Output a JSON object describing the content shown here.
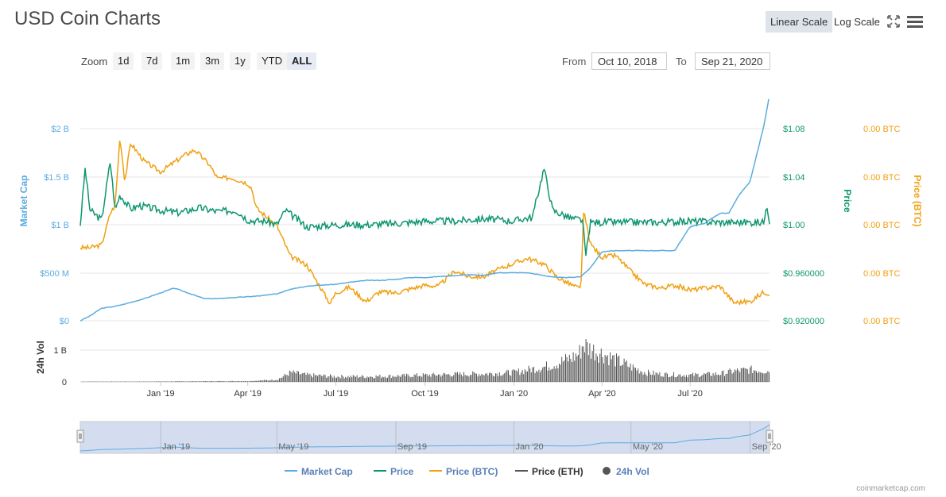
{
  "header": {
    "title": "USD Coin Charts",
    "linear_scale": "Linear Scale",
    "log_scale": "Log Scale",
    "fullscreen_icon": "fullscreen-icon",
    "menu_icon": "hamburger-menu-icon"
  },
  "zoom": {
    "label": "Zoom",
    "buttons": [
      "1d",
      "7d",
      "1m",
      "3m",
      "1y",
      "YTD",
      "ALL"
    ],
    "active": "ALL"
  },
  "range": {
    "from_label": "From",
    "from_value": "Oct 10, 2018",
    "to_label": "To",
    "to_value": "Sep 21, 2020"
  },
  "credit": "coinmarketcap.com",
  "colors": {
    "market_cap": "#5aace0",
    "price": "#0e9670",
    "price_btc": "#f0a010",
    "price_eth": "#555555",
    "volume": "#555555"
  },
  "chart_data": {
    "type": "line",
    "x_tick_labels": [
      "Jan '19",
      "Apr '19",
      "Jul '19",
      "Oct '19",
      "Jan '20",
      "Apr '20",
      "Jul '20"
    ],
    "navigator_tick_labels": [
      "Jan '19",
      "May '19",
      "Sep '19",
      "Jan '20",
      "May '20",
      "Sep '20"
    ],
    "axes": {
      "market_cap": {
        "title": "Market Cap",
        "ticks": [
          "$0",
          "$500 M",
          "$1 B",
          "$1.5 B",
          "$2 B"
        ],
        "ylim": [
          0,
          2000000000
        ]
      },
      "price": {
        "title": "Price",
        "ticks": [
          "$0.920000",
          "$0.960000",
          "$1.00",
          "$1.04",
          "$1.08"
        ],
        "ylim": [
          0.92,
          1.08
        ]
      },
      "price_btc": {
        "title": "Price (BTC)",
        "ticks": [
          "0.00 BTC",
          "0.00 BTC",
          "0.00 BTC",
          "0.00 BTC",
          "0.00 BTC"
        ]
      },
      "volume": {
        "title": "24h Vol",
        "ticks": [
          "0",
          "1 B"
        ],
        "ylim": [
          0,
          1000000000
        ]
      }
    },
    "series": [
      {
        "name": "Market Cap",
        "x": [
          "2018-10-10",
          "2018-10-20",
          "2018-11-01",
          "2018-11-15",
          "2018-12-01",
          "2018-12-15",
          "2019-01-01",
          "2019-01-15",
          "2019-02-01",
          "2019-02-15",
          "2019-03-01",
          "2019-03-15",
          "2019-04-01",
          "2019-04-15",
          "2019-05-01",
          "2019-05-15",
          "2019-06-01",
          "2019-06-15",
          "2019-07-01",
          "2019-07-15",
          "2019-08-01",
          "2019-08-15",
          "2019-09-01",
          "2019-09-15",
          "2019-10-01",
          "2019-10-15",
          "2019-11-01",
          "2019-11-15",
          "2019-12-01",
          "2019-12-15",
          "2020-01-01",
          "2020-01-15",
          "2020-02-01",
          "2020-02-15",
          "2020-03-01",
          "2020-03-10",
          "2020-03-20",
          "2020-04-01",
          "2020-04-15",
          "2020-05-01",
          "2020-05-15",
          "2020-06-01",
          "2020-06-15",
          "2020-07-01",
          "2020-07-15",
          "2020-08-01",
          "2020-08-10",
          "2020-08-20",
          "2020-09-01",
          "2020-09-10",
          "2020-09-15",
          "2020-09-21"
        ],
        "values": [
          0.0,
          0.05,
          0.13,
          0.15,
          0.19,
          0.23,
          0.29,
          0.34,
          0.28,
          0.23,
          0.23,
          0.24,
          0.25,
          0.26,
          0.28,
          0.33,
          0.36,
          0.37,
          0.38,
          0.4,
          0.42,
          0.42,
          0.43,
          0.45,
          0.45,
          0.46,
          0.47,
          0.48,
          0.47,
          0.5,
          0.5,
          0.5,
          0.47,
          0.45,
          0.45,
          0.46,
          0.55,
          0.72,
          0.73,
          0.73,
          0.73,
          0.73,
          0.73,
          0.98,
          1.01,
          1.12,
          1.12,
          1.3,
          1.45,
          1.82,
          2.02,
          2.35
        ],
        "unit": "B USD"
      },
      {
        "name": "Price",
        "x": [
          "2018-10-10",
          "2018-10-15",
          "2018-10-20",
          "2018-11-01",
          "2018-11-10",
          "2018-11-15",
          "2018-11-20",
          "2018-12-01",
          "2018-12-10",
          "2019-01-01",
          "2019-01-20",
          "2019-02-10",
          "2019-03-01",
          "2019-03-20",
          "2019-04-01",
          "2019-04-10",
          "2019-04-20",
          "2019-05-01",
          "2019-05-10",
          "2019-06-01",
          "2019-07-01",
          "2019-08-01",
          "2019-09-01",
          "2019-10-01",
          "2019-11-01",
          "2019-12-01",
          "2020-01-01",
          "2020-01-10",
          "2020-01-20",
          "2020-02-01",
          "2020-02-10",
          "2020-03-01",
          "2020-03-12",
          "2020-03-15",
          "2020-03-20",
          "2020-04-01",
          "2020-05-01",
          "2020-06-01",
          "2020-07-01",
          "2020-08-01",
          "2020-09-01",
          "2020-09-15",
          "2020-09-18",
          "2020-09-21"
        ],
        "values": [
          1.0,
          1.047,
          1.012,
          1.004,
          1.053,
          1.012,
          1.025,
          1.013,
          1.016,
          1.012,
          1.01,
          1.014,
          1.011,
          1.012,
          1.004,
          1.003,
          1.003,
          1.0,
          1.012,
          0.998,
          1.0,
          1.0,
          1.001,
          1.003,
          1.003,
          1.005,
          1.003,
          1.005,
          1.006,
          1.047,
          1.012,
          1.005,
          1.004,
          0.973,
          1.002,
          1.002,
          1.002,
          1.002,
          1.003,
          1.002,
          1.002,
          1.002,
          1.019,
          1.002
        ]
      },
      {
        "name": "Price (BTC)",
        "x": [
          "2018-10-10",
          "2018-10-20",
          "2018-11-01",
          "2018-11-10",
          "2018-11-15",
          "2018-11-20",
          "2018-11-25",
          "2018-12-01",
          "2018-12-15",
          "2019-01-01",
          "2019-01-15",
          "2019-01-25",
          "2019-02-05",
          "2019-02-20",
          "2019-03-01",
          "2019-03-15",
          "2019-04-01",
          "2019-04-05",
          "2019-04-10",
          "2019-05-01",
          "2019-05-15",
          "2019-06-01",
          "2019-06-15",
          "2019-06-25",
          "2019-07-01",
          "2019-07-15",
          "2019-08-01",
          "2019-08-15",
          "2019-09-01",
          "2019-09-15",
          "2019-10-01",
          "2019-10-15",
          "2019-11-01",
          "2019-11-15",
          "2019-12-01",
          "2019-12-15",
          "2020-01-01",
          "2020-01-15",
          "2020-02-01",
          "2020-02-15",
          "2020-03-01",
          "2020-03-10",
          "2020-03-13",
          "2020-03-20",
          "2020-04-01",
          "2020-04-15",
          "2020-05-01",
          "2020-05-15",
          "2020-06-01",
          "2020-06-15",
          "2020-07-01",
          "2020-08-01",
          "2020-08-15",
          "2020-09-01",
          "2020-09-15",
          "2020-09-21"
        ],
        "values": [
          0.76,
          0.76,
          0.79,
          1.12,
          1.2,
          1.92,
          1.45,
          1.85,
          1.66,
          1.55,
          1.65,
          1.72,
          1.78,
          1.63,
          1.48,
          1.49,
          1.43,
          1.38,
          1.17,
          0.99,
          0.67,
          0.58,
          0.35,
          0.18,
          0.29,
          0.35,
          0.2,
          0.3,
          0.29,
          0.33,
          0.37,
          0.36,
          0.52,
          0.46,
          0.46,
          0.53,
          0.6,
          0.65,
          0.59,
          0.45,
          0.37,
          0.33,
          1.14,
          0.8,
          0.66,
          0.68,
          0.51,
          0.38,
          0.34,
          0.37,
          0.32,
          0.36,
          0.19,
          0.2,
          0.3,
          0.28
        ],
        "unit": "relative, axis prints 0.00 BTC"
      },
      {
        "name": "Price (ETH)",
        "x": [],
        "values": []
      }
    ],
    "volume": {
      "name": "24h Vol",
      "x": [
        "2018-10-10",
        "2018-12-01",
        "2019-02-01",
        "2019-04-01",
        "2019-05-01",
        "2019-05-15",
        "2019-06-01",
        "2019-07-01",
        "2019-08-01",
        "2019-09-01",
        "2019-10-01",
        "2019-11-01",
        "2019-12-01",
        "2020-01-01",
        "2020-01-15",
        "2020-02-01",
        "2020-02-15",
        "2020-03-01",
        "2020-03-08",
        "2020-03-12",
        "2020-03-20",
        "2020-04-01",
        "2020-04-15",
        "2020-05-01",
        "2020-05-15",
        "2020-06-01",
        "2020-07-01",
        "2020-08-01",
        "2020-08-15",
        "2020-09-01",
        "2020-09-21"
      ],
      "values": [
        0.01,
        0.01,
        0.02,
        0.03,
        0.08,
        0.35,
        0.25,
        0.2,
        0.2,
        0.22,
        0.25,
        0.28,
        0.3,
        0.35,
        0.45,
        0.55,
        0.7,
        0.9,
        1.05,
        1.4,
        1.2,
        1.05,
        0.8,
        0.55,
        0.35,
        0.28,
        0.25,
        0.3,
        0.4,
        0.45,
        0.4
      ],
      "unit": "B USD"
    },
    "legend_position": "bottom-center"
  }
}
